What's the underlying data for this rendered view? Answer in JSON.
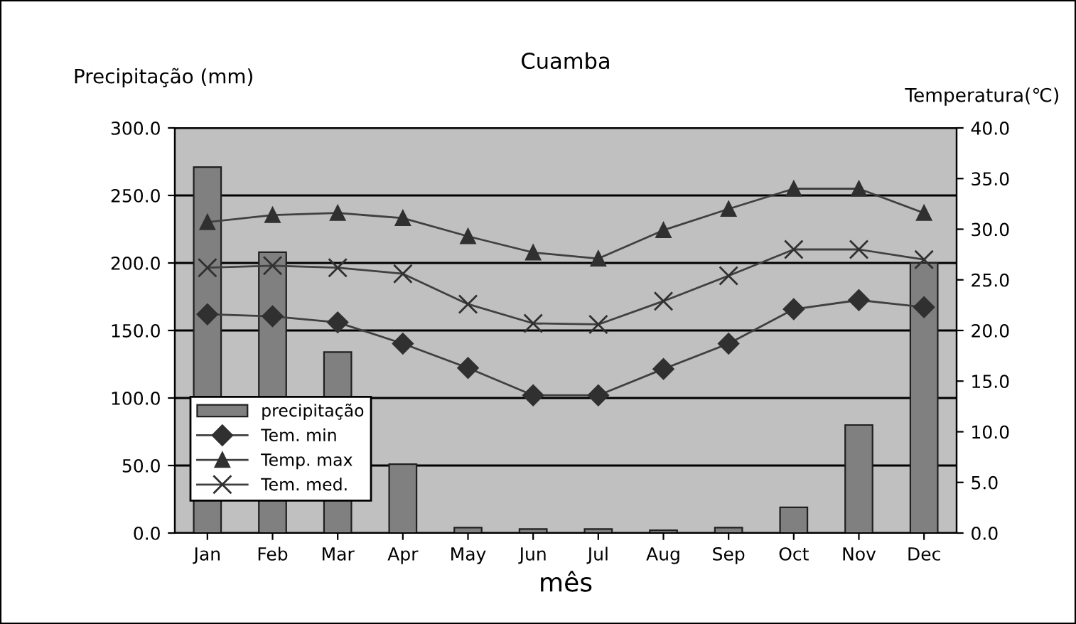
{
  "chart_data": {
    "type": "bar",
    "title": "Cuamba",
    "xlabel": "mês",
    "ylabel": "Precipitação (mm)",
    "y2label": "Temperatura(℃)",
    "categories": [
      "Jan",
      "Feb",
      "Mar",
      "Apr",
      "May",
      "Jun",
      "Jul",
      "Aug",
      "Sep",
      "Oct",
      "Nov",
      "Dec"
    ],
    "series": [
      {
        "name": "precipitação",
        "color": "#808080",
        "values": [
          271,
          208,
          134,
          51,
          4,
          3,
          3,
          2,
          4,
          19,
          80,
          200
        ]
      },
      {
        "name": "Tem. min",
        "type": "line",
        "axis": "y2",
        "marker": "diamond",
        "color": "#404040",
        "values": [
          21.6,
          21.4,
          20.8,
          18.7,
          16.3,
          13.6,
          13.6,
          16.2,
          18.7,
          22.1,
          23.0,
          22.3
        ]
      },
      {
        "name": "Temp. max",
        "type": "line",
        "axis": "y2",
        "marker": "triangle",
        "color": "#404040",
        "values": [
          30.7,
          31.4,
          31.6,
          31.1,
          29.3,
          27.7,
          27.1,
          29.9,
          32.0,
          34.0,
          34.0,
          31.6
        ]
      },
      {
        "name": "Tem. med.",
        "type": "line",
        "axis": "y2",
        "marker": "cross",
        "color": "#404040",
        "values": [
          26.2,
          26.4,
          26.2,
          25.6,
          22.6,
          20.7,
          20.6,
          22.9,
          25.4,
          28.0,
          28.0,
          27.0
        ]
      }
    ],
    "ylim": [
      0,
      300
    ],
    "yticks": [
      {
        "value": 0,
        "label": "0.0"
      },
      {
        "value": 50,
        "label": "50.0"
      },
      {
        "value": 100,
        "label": "100.0"
      },
      {
        "value": 150,
        "label": "150.0"
      },
      {
        "value": 200,
        "label": "200.0"
      },
      {
        "value": 250,
        "label": "250.0"
      },
      {
        "value": 300,
        "label": "300.0"
      }
    ],
    "y2lim": [
      0,
      40
    ],
    "y2ticks": [
      {
        "value": 0,
        "label": "0.0"
      },
      {
        "value": 5,
        "label": "5.0"
      },
      {
        "value": 10,
        "label": "10.0"
      },
      {
        "value": 15,
        "label": "15.0"
      },
      {
        "value": 20,
        "label": "20.0"
      },
      {
        "value": 25,
        "label": "25.0"
      },
      {
        "value": 30,
        "label": "30.0"
      },
      {
        "value": 35,
        "label": "35.0"
      },
      {
        "value": 40,
        "label": "40.0"
      }
    ],
    "grid": "y",
    "legend": "bottom left"
  }
}
